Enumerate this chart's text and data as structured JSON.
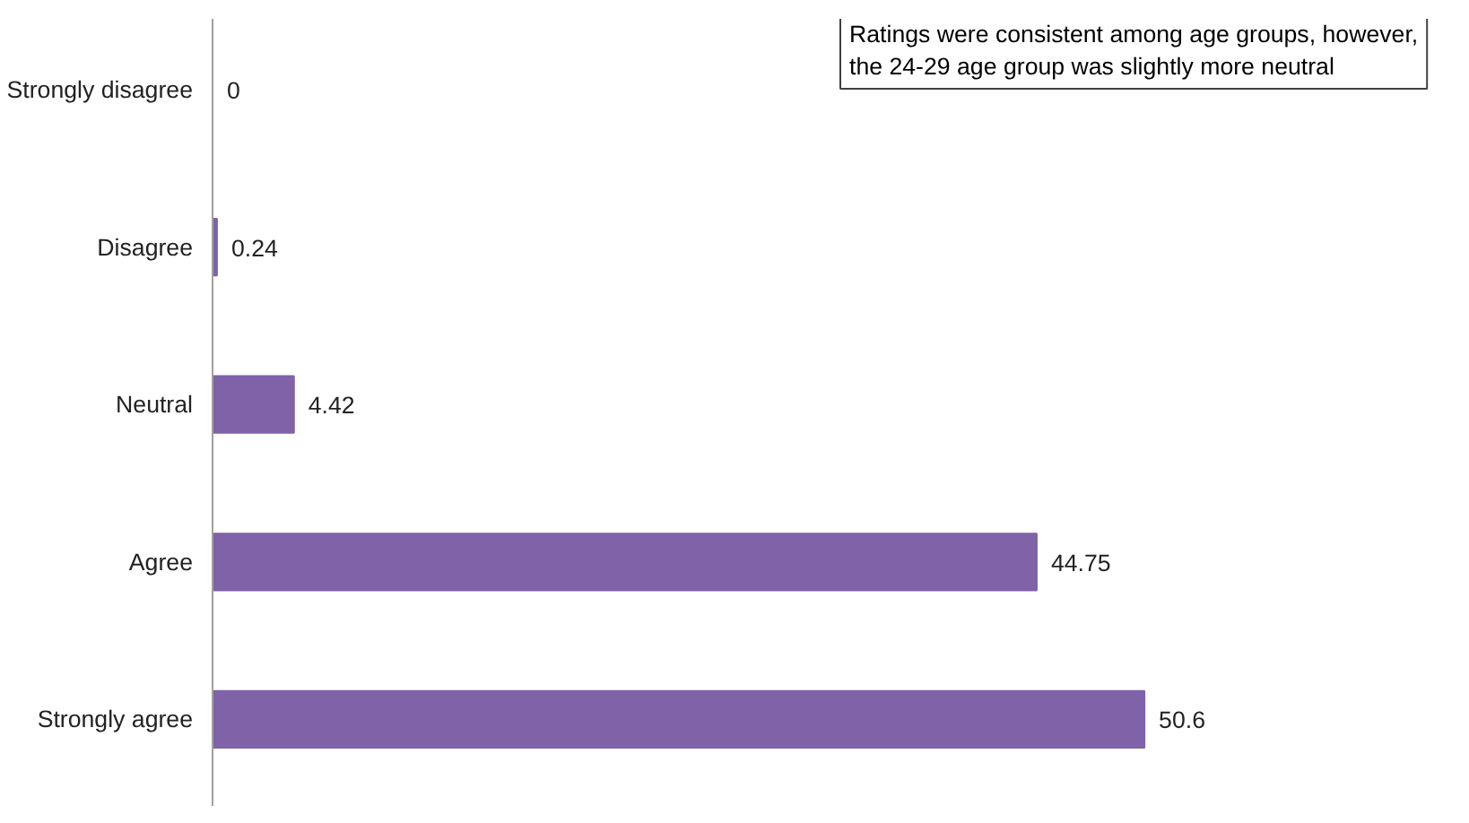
{
  "chart_data": {
    "type": "bar",
    "orientation": "horizontal",
    "categories": [
      "Strongly disagree",
      "Disagree",
      "Neutral",
      "Agree",
      "Strongly agree"
    ],
    "values": [
      0,
      0.24,
      4.42,
      44.75,
      50.6
    ],
    "color": "#7f62a8",
    "data_labels": true,
    "grid": false,
    "tick_labels": "y",
    "annotations": [
      "Ratings were consistent among age groups, however,\nthe 24-29 age group was slightly more neutral"
    ]
  }
}
